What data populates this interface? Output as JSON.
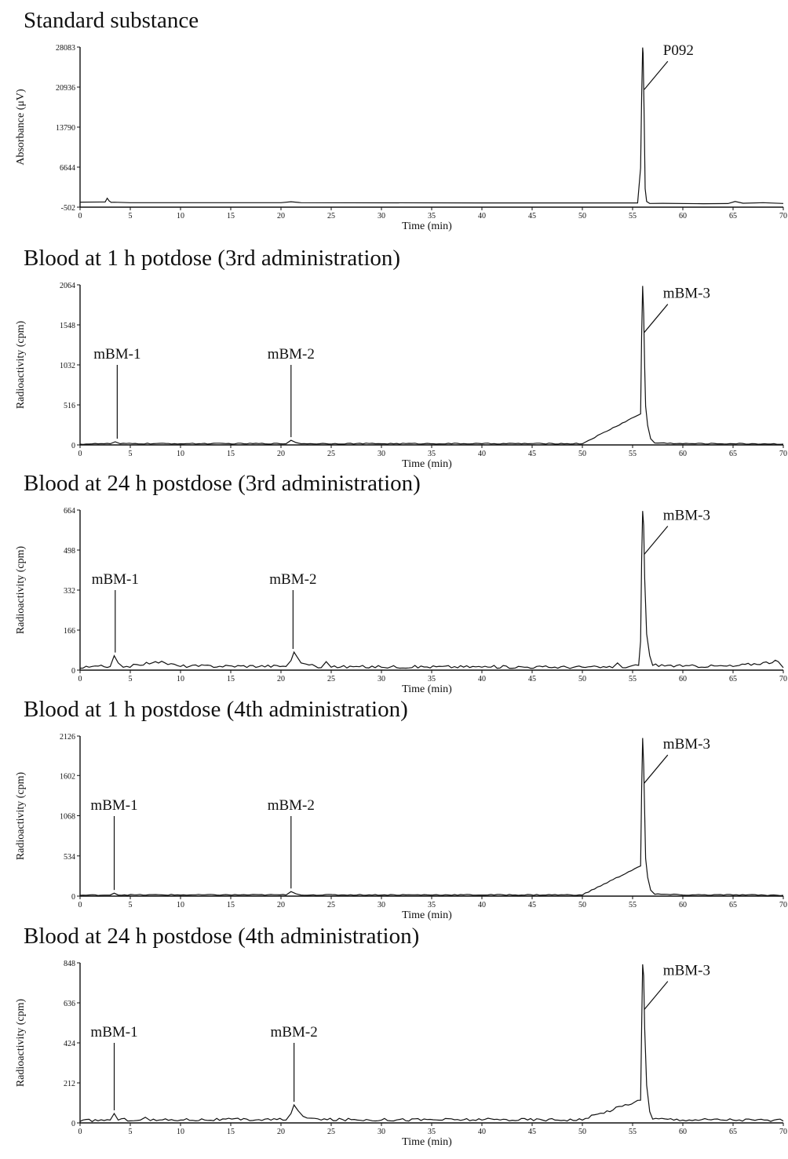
{
  "chart_data": [
    {
      "type": "line",
      "title": "Standard substance",
      "xlabel": "Time (min)",
      "ylabel": "Absorbance (μV)",
      "xlim": [
        0,
        70
      ],
      "ylim": [
        -502,
        28083
      ],
      "xticks": [
        "0",
        "5",
        "10",
        "15",
        "20",
        "25",
        "30",
        "35",
        "40",
        "45",
        "50",
        "55",
        "60",
        "65",
        "70"
      ],
      "yticks": [
        "28083",
        "20936",
        "13790",
        "6644",
        "-502"
      ],
      "grid": false,
      "series": [
        {
          "x": [
            0,
            2.5,
            2.7,
            2.9,
            3.1,
            3.4,
            5,
            20,
            21,
            22,
            40,
            55.5,
            55.8,
            55.9,
            56,
            56.05,
            56.15,
            56.25,
            56.4,
            56.7,
            58,
            62,
            64.5,
            65.2,
            66,
            68,
            70
          ],
          "y": [
            400,
            420,
            1100,
            600,
            350,
            380,
            300,
            300,
            460,
            300,
            250,
            250,
            6500,
            19000,
            28000,
            27000,
            16000,
            2800,
            500,
            150,
            180,
            120,
            140,
            500,
            200,
            300,
            150
          ]
        }
      ],
      "annotations": [
        {
          "label": "P092",
          "x": 56,
          "y": 20500
        }
      ]
    },
    {
      "type": "line",
      "title": "Blood at 1 h potdose (3rd administration)",
      "xlabel": "Time (min)",
      "ylabel": "Radioactivity (cpm)",
      "xlim": [
        0,
        70
      ],
      "ylim": [
        0,
        2064
      ],
      "xticks": [
        "0",
        "5",
        "10",
        "15",
        "20",
        "25",
        "30",
        "35",
        "40",
        "45",
        "50",
        "55",
        "60",
        "65",
        "70"
      ],
      "yticks": [
        "2064",
        "1548",
        "1032",
        "516",
        "0"
      ],
      "grid": false,
      "series": [
        {
          "x": [
            0,
            3,
            3.5,
            4,
            10,
            20.5,
            21,
            21.5,
            22,
            30,
            40,
            50,
            55.8,
            55.9,
            56,
            56.1,
            56.2,
            56.3,
            56.5,
            56.8,
            57.2,
            60,
            65,
            70
          ],
          "y": [
            10,
            15,
            40,
            15,
            15,
            15,
            60,
            30,
            15,
            15,
            15,
            15,
            400,
            1400,
            2050,
            1700,
            1000,
            500,
            250,
            80,
            25,
            15,
            15,
            10
          ]
        }
      ],
      "annotations": [
        {
          "label": "mBM-1",
          "x": 3.7,
          "y": 40
        },
        {
          "label": "mBM-2",
          "x": 21,
          "y": 60
        },
        {
          "label": "mBM-3",
          "x": 56,
          "y": 1450
        }
      ]
    },
    {
      "type": "line",
      "title": "Blood at 24 h postdose (3rd administration)",
      "xlabel": "Time (min)",
      "ylabel": "Radioactivity (cpm)",
      "xlim": [
        0,
        70
      ],
      "ylim": [
        0,
        664
      ],
      "xticks": [
        "0",
        "5",
        "10",
        "15",
        "20",
        "25",
        "30",
        "35",
        "40",
        "45",
        "50",
        "55",
        "60",
        "65",
        "70"
      ],
      "yticks": [
        "664",
        "498",
        "332",
        "166",
        "0"
      ],
      "grid": false,
      "series": [
        {
          "x": [
            0,
            3,
            3.4,
            3.8,
            4.3,
            6,
            7.5,
            10,
            20.5,
            21,
            21.3,
            21.6,
            22,
            22.5,
            24,
            24.5,
            25,
            30,
            40,
            53,
            53.5,
            54,
            55.6,
            55.8,
            55.9,
            56,
            56.1,
            56.2,
            56.4,
            56.7,
            57,
            60,
            65,
            69.5,
            70
          ],
          "y": [
            8,
            15,
            60,
            30,
            12,
            20,
            35,
            15,
            15,
            40,
            75,
            55,
            30,
            25,
            10,
            35,
            12,
            12,
            12,
            10,
            30,
            10,
            20,
            120,
            450,
            660,
            600,
            380,
            150,
            60,
            20,
            15,
            15,
            35,
            10
          ]
        }
      ],
      "annotations": [
        {
          "label": "mBM-1",
          "x": 3.5,
          "y": 60
        },
        {
          "label": "mBM-2",
          "x": 21.2,
          "y": 75
        },
        {
          "label": "mBM-3",
          "x": 56,
          "y": 480
        }
      ]
    },
    {
      "type": "line",
      "title": "Blood at 1 h postdose (4th administration)",
      "xlabel": "Time (min)",
      "ylabel": "Radioactivity (cpm)",
      "xlim": [
        0,
        70
      ],
      "ylim": [
        0,
        2126
      ],
      "xticks": [
        "0",
        "5",
        "10",
        "15",
        "20",
        "25",
        "30",
        "35",
        "40",
        "45",
        "50",
        "55",
        "60",
        "65",
        "70"
      ],
      "yticks": [
        "2126",
        "1602",
        "1068",
        "534",
        "0"
      ],
      "grid": false,
      "series": [
        {
          "x": [
            0,
            3,
            3.4,
            3.8,
            10,
            20.5,
            21,
            21.5,
            22,
            30,
            40,
            50,
            55.8,
            55.9,
            56,
            56.1,
            56.2,
            56.3,
            56.5,
            56.8,
            57.2,
            60,
            65,
            70
          ],
          "y": [
            10,
            15,
            40,
            15,
            15,
            15,
            60,
            30,
            15,
            15,
            15,
            15,
            400,
            1400,
            2100,
            1750,
            1100,
            500,
            250,
            80,
            25,
            15,
            15,
            10
          ]
        }
      ],
      "annotations": [
        {
          "label": "mBM-1",
          "x": 3.4,
          "y": 40
        },
        {
          "label": "mBM-2",
          "x": 21,
          "y": 60
        },
        {
          "label": "mBM-3",
          "x": 56,
          "y": 1500
        }
      ]
    },
    {
      "type": "line",
      "title": "Blood at 24 h postdose (4th administration)",
      "xlabel": "Time (min)",
      "ylabel": "Radioactivity (cpm)",
      "xlim": [
        0,
        70
      ],
      "ylim": [
        0,
        848
      ],
      "xticks": [
        "0",
        "5",
        "10",
        "15",
        "20",
        "25",
        "30",
        "35",
        "40",
        "45",
        "50",
        "55",
        "60",
        "65",
        "70"
      ],
      "yticks": [
        "848",
        "636",
        "424",
        "212",
        "0"
      ],
      "grid": false,
      "series": [
        {
          "x": [
            0,
            3,
            3.4,
            3.8,
            6,
            6.5,
            7,
            10,
            20.5,
            21,
            21.3,
            21.7,
            22.2,
            23,
            24,
            30,
            40,
            50,
            55.8,
            55.9,
            56,
            56.1,
            56.2,
            56.4,
            56.7,
            57,
            60,
            65,
            70
          ],
          "y": [
            8,
            15,
            50,
            15,
            15,
            30,
            12,
            15,
            15,
            50,
            95,
            65,
            35,
            25,
            15,
            15,
            15,
            15,
            120,
            500,
            840,
            780,
            500,
            200,
            60,
            20,
            15,
            15,
            10
          ]
        }
      ],
      "annotations": [
        {
          "label": "mBM-1",
          "x": 3.4,
          "y": 50
        },
        {
          "label": "mBM-2",
          "x": 21.3,
          "y": 95
        },
        {
          "label": "mBM-3",
          "x": 56,
          "y": 600
        }
      ]
    }
  ]
}
